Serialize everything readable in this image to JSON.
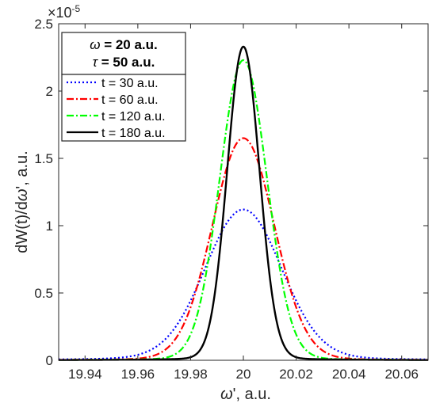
{
  "chart_data": {
    "type": "line",
    "xlabel_symbol": "ω",
    "xlabel_rest": "', a.u.",
    "ylabel_pre": "dW(t)/d",
    "ylabel_symbol": "ω",
    "ylabel_rest": "', a.u.",
    "exponent_base": "×10",
    "exponent_power": "-5",
    "xlim": [
      19.93,
      20.07
    ],
    "ylim": [
      0,
      2.5
    ],
    "x_ticks": [
      19.94,
      19.96,
      19.98,
      20,
      20.02,
      20.04,
      20.06
    ],
    "x_tick_labels": [
      "19.94",
      "19.96",
      "19.98",
      "20",
      "20.02",
      "20.04",
      "20.06"
    ],
    "y_ticks": [
      0,
      0.5,
      1,
      1.5,
      2,
      2.5
    ],
    "y_tick_labels": [
      "0",
      "0.5",
      "1",
      "1.5",
      "2",
      "2.5"
    ],
    "grid": false,
    "params": {
      "omega_symbol": "ω",
      "omega_text": " = 20 a.u.",
      "tau_symbol": "τ",
      "tau_text": " = 50 a.u."
    },
    "legend_position": "top-left",
    "center": 20,
    "series": [
      {
        "name": "t = 30 a.u.",
        "peak": 1.12,
        "color": "#0000ff",
        "style": "dotted"
      },
      {
        "name": "t = 60 a.u.",
        "peak": 1.65,
        "color": "#ff0000",
        "style": "dashdot"
      },
      {
        "name": "t = 120 a.u.",
        "peak": 2.23,
        "color": "#00ff00",
        "style": "dashdot"
      },
      {
        "name": "t = 180 a.u.",
        "peak": 2.33,
        "color": "#000000",
        "style": "solid"
      }
    ]
  }
}
